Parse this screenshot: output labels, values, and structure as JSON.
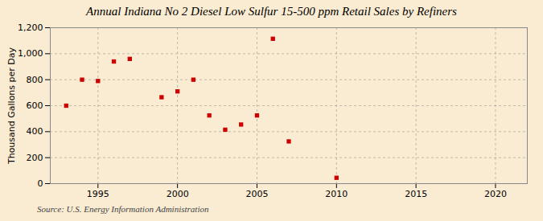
{
  "chart_data": {
    "type": "scatter",
    "title": "Annual Indiana No 2 Diesel Low Sulfur 15-500 ppm Retail Sales by Refiners",
    "ylabel": "Thousand Gallons per Day",
    "annotation": "Source: U.S. Energy Information Administration",
    "x": [
      1993,
      1994,
      1995,
      1996,
      1997,
      1999,
      2000,
      2001,
      2002,
      2003,
      2004,
      2005,
      2006,
      2007,
      2010
    ],
    "values": [
      600,
      800,
      790,
      940,
      960,
      665,
      710,
      800,
      525,
      415,
      455,
      525,
      1115,
      325,
      45
    ],
    "color": "#cc0000",
    "marker": "square",
    "xlim": [
      1992,
      2022
    ],
    "ylim": [
      0,
      1200
    ],
    "xticks": [
      1995,
      2000,
      2005,
      2010,
      2015,
      2020
    ],
    "yticks": [
      0,
      200,
      400,
      600,
      {
        "value": 800,
        "label": "800"
      },
      {
        "value": 1000,
        "label": "1,000"
      },
      {
        "value": 1200,
        "label": "1,200"
      }
    ],
    "grid": true
  }
}
